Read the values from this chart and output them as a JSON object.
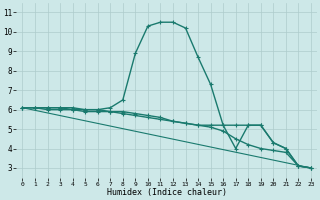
{
  "bg_color": "#cde8e8",
  "grid_color": "#aecccc",
  "line_color": "#1a7a6e",
  "xlabel": "Humidex (Indice chaleur)",
  "xlim": [
    -0.5,
    23.5
  ],
  "ylim": [
    2.5,
    11.5
  ],
  "xticks": [
    0,
    1,
    2,
    3,
    4,
    5,
    6,
    7,
    8,
    9,
    10,
    11,
    12,
    13,
    14,
    15,
    16,
    17,
    18,
    19,
    20,
    21,
    22,
    23
  ],
  "yticks": [
    3,
    4,
    5,
    6,
    7,
    8,
    9,
    10,
    11
  ],
  "series": [
    {
      "x": [
        0,
        1,
        2,
        3,
        4,
        5,
        6,
        7,
        8,
        9,
        10,
        11,
        12,
        13,
        14,
        15,
        16,
        17,
        18,
        19,
        20,
        21,
        22,
        23
      ],
      "y": [
        6.1,
        6.1,
        6.1,
        6.1,
        6.1,
        6.0,
        6.0,
        6.1,
        6.5,
        8.9,
        10.3,
        10.5,
        10.5,
        10.2,
        8.7,
        7.3,
        5.2,
        4.0,
        5.2,
        5.2,
        4.3,
        4.0,
        3.1,
        3.0
      ],
      "marker": "+",
      "lw": 1.0
    },
    {
      "x": [
        0,
        1,
        2,
        3,
        4,
        5,
        6,
        7,
        8,
        9,
        10,
        11,
        12,
        13,
        14,
        15,
        16,
        17,
        18,
        19,
        20,
        21,
        22,
        23
      ],
      "y": [
        6.1,
        6.1,
        6.0,
        6.0,
        6.0,
        5.9,
        5.9,
        5.9,
        5.8,
        5.7,
        5.6,
        5.5,
        5.4,
        5.3,
        5.2,
        5.2,
        5.2,
        5.2,
        5.2,
        5.2,
        4.3,
        4.0,
        3.1,
        3.0
      ],
      "marker": "+",
      "lw": 1.0
    },
    {
      "x": [
        0,
        1,
        2,
        3,
        4,
        5,
        6,
        7,
        8,
        9,
        10,
        11,
        12,
        13,
        14,
        15,
        16,
        17,
        18,
        19,
        20,
        21,
        22,
        23
      ],
      "y": [
        6.1,
        6.1,
        6.1,
        6.1,
        6.0,
        6.0,
        6.0,
        5.9,
        5.9,
        5.8,
        5.7,
        5.6,
        5.4,
        5.3,
        5.2,
        5.1,
        4.9,
        4.5,
        4.2,
        4.0,
        3.9,
        3.8,
        3.1,
        3.0
      ],
      "marker": "+",
      "lw": 1.0
    },
    {
      "x": [
        0,
        23
      ],
      "y": [
        6.1,
        3.0
      ],
      "marker": null,
      "lw": 0.8
    }
  ]
}
